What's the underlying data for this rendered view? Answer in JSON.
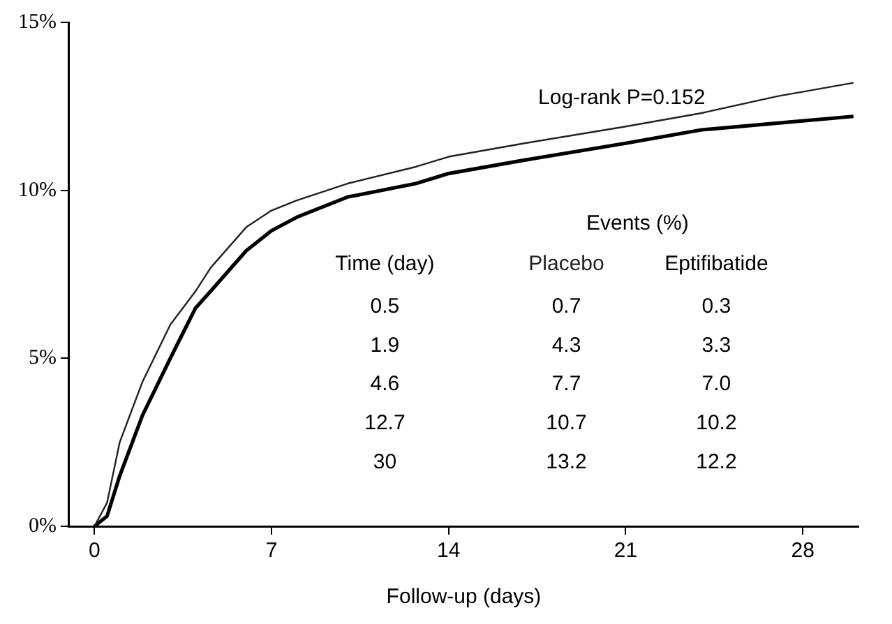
{
  "chart_data": {
    "type": "line",
    "xlabel": "Follow-up (days)",
    "xlim": [
      -1,
      30.2
    ],
    "xticks": [
      0,
      7,
      14,
      21,
      28
    ],
    "ylim": [
      0,
      15
    ],
    "yticks": [
      {
        "value": 0,
        "label": "0%"
      },
      {
        "value": 5,
        "label": "5%"
      },
      {
        "value": 10,
        "label": "10%"
      },
      {
        "value": 15,
        "label": "15%"
      }
    ],
    "grid": false,
    "legend": false,
    "marker": "none",
    "line_style": "solid",
    "annotations": [
      "Log-rank P=0.152",
      "Events (%)",
      "Time (day)",
      "0.5",
      "0.7",
      "0.3",
      "1.9",
      "4.3",
      "3.3",
      "4.6",
      "7.7",
      "7.0",
      "12.7",
      "10.7",
      "10.2",
      "30",
      "13.2",
      "12.2"
    ],
    "series": [
      {
        "name": "Placebo",
        "color": "#222222",
        "x": [
          0,
          0.5,
          1,
          1.9,
          3,
          4,
          4.6,
          6,
          7,
          8,
          10,
          12.7,
          14,
          17,
          21,
          24,
          27,
          30
        ],
        "values": [
          0,
          0.7,
          2.5,
          4.3,
          6.0,
          7.0,
          7.7,
          8.9,
          9.4,
          9.7,
          10.2,
          10.7,
          11.0,
          11.4,
          11.9,
          12.3,
          12.8,
          13.2
        ]
      },
      {
        "name": "Eptifibatide",
        "color": "#000000",
        "x": [
          0,
          0.5,
          1,
          1.9,
          3,
          4,
          4.6,
          6,
          7,
          8,
          10,
          12.7,
          14,
          17,
          21,
          24,
          27,
          30
        ],
        "values": [
          0,
          0.3,
          1.5,
          3.3,
          5.0,
          6.5,
          7.0,
          8.2,
          8.8,
          9.2,
          9.8,
          10.2,
          10.5,
          10.9,
          11.4,
          11.8,
          12.0,
          12.2
        ]
      }
    ]
  }
}
